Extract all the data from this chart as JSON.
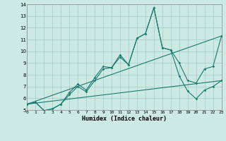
{
  "xlabel": "Humidex (Indice chaleur)",
  "xlim": [
    0,
    23
  ],
  "ylim": [
    5,
    14
  ],
  "xticks": [
    0,
    1,
    2,
    3,
    4,
    5,
    6,
    7,
    8,
    9,
    10,
    11,
    12,
    13,
    14,
    15,
    16,
    17,
    18,
    19,
    20,
    21,
    22,
    23
  ],
  "yticks": [
    5,
    6,
    7,
    8,
    9,
    10,
    11,
    12,
    13,
    14
  ],
  "background_color": "#cce9e4",
  "grid_color": "#aacfca",
  "line_color": "#1a7a6e",
  "series1_x": [
    0,
    1,
    2,
    3,
    4,
    5,
    6,
    7,
    8,
    9,
    10,
    11,
    12,
    13,
    14,
    15,
    16,
    17,
    18,
    19,
    20,
    21,
    22,
    23
  ],
  "series1_y": [
    5.5,
    5.65,
    4.95,
    5.1,
    5.5,
    6.5,
    7.2,
    6.7,
    7.75,
    8.7,
    8.6,
    9.7,
    8.85,
    11.1,
    11.5,
    13.7,
    10.3,
    10.1,
    9.0,
    7.5,
    7.3,
    8.5,
    8.7,
    11.3
  ],
  "series2_x": [
    0,
    1,
    2,
    3,
    4,
    5,
    6,
    7,
    8,
    9,
    10,
    11,
    12,
    13,
    14,
    15,
    16,
    17,
    18,
    19,
    20,
    21,
    22,
    23
  ],
  "series2_y": [
    5.5,
    5.65,
    4.95,
    5.1,
    5.5,
    6.3,
    7.0,
    6.55,
    7.5,
    8.5,
    8.6,
    9.5,
    8.85,
    11.1,
    11.5,
    13.7,
    10.3,
    10.1,
    7.9,
    6.6,
    5.95,
    6.7,
    7.0,
    7.5
  ],
  "line3_x": [
    0,
    23
  ],
  "line3_y": [
    5.5,
    11.3
  ],
  "line4_x": [
    0,
    23
  ],
  "line4_y": [
    5.5,
    7.5
  ]
}
